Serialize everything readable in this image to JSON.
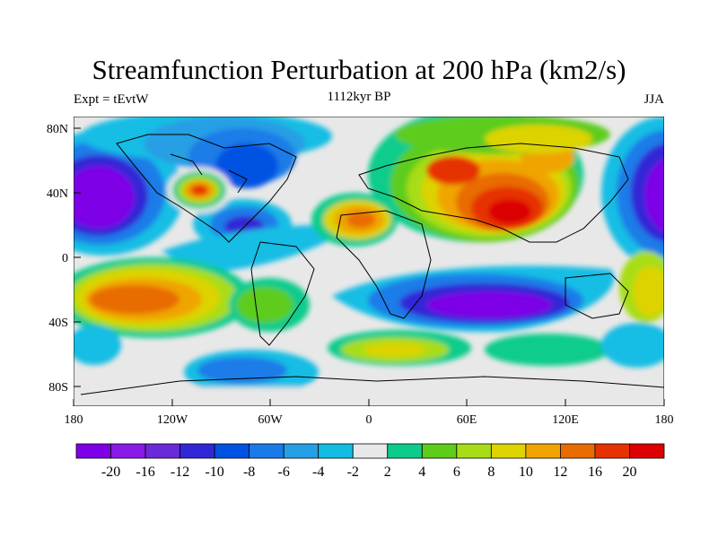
{
  "title": "Streamfunction Perturbation at 200 hPa (km2/s)",
  "left_string": "Expt = tEvtW",
  "center_string": "1112kyr BP",
  "right_string": "JJA",
  "map": {
    "projection": "cylindrical equidistant",
    "lon_range": [
      -180,
      180
    ],
    "lat_range": [
      -90,
      90
    ],
    "lat_labels": [
      "80N",
      "40N",
      "0",
      "40S",
      "80S"
    ],
    "lon_labels": [
      "180",
      "120W",
      "60W",
      "0",
      "60E",
      "120E",
      "180"
    ]
  },
  "colorbar": {
    "colors": [
      "#7d00e6",
      "#8a1ae6",
      "#6a2ad8",
      "#3227d6",
      "#0053e2",
      "#1a7be8",
      "#279fe4",
      "#12bde4",
      "#e8e8e8",
      "#0ccc8c",
      "#5dcc1a",
      "#a8dd16",
      "#ddd300",
      "#f0a400",
      "#e86c00",
      "#e63200",
      "#dc0000"
    ],
    "labels": [
      "-20",
      "-16",
      "-12",
      "-10",
      "-8",
      "-6",
      "-4",
      "-2",
      "2",
      "4",
      "6",
      "8",
      "10",
      "12",
      "16",
      "20"
    ]
  }
}
